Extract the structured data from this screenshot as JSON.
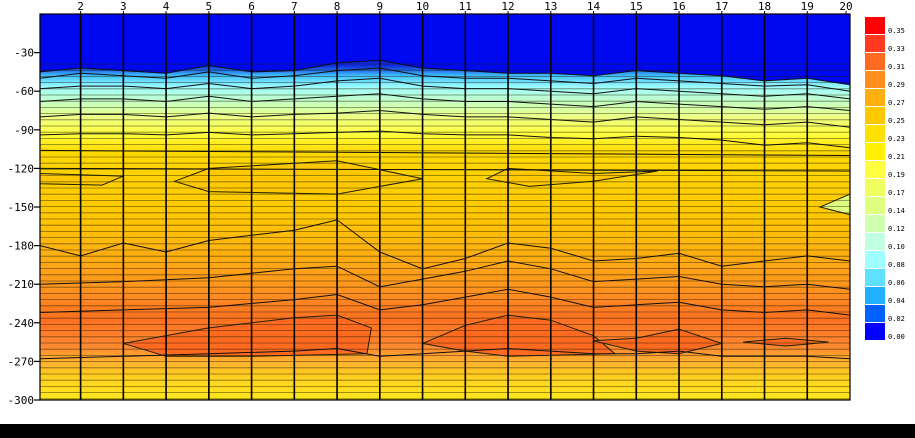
{
  "chart_data": {
    "type": "heatmap",
    "title": "",
    "xlabel": "",
    "ylabel": "",
    "x_ticks": [
      "2",
      "3",
      "4",
      "5",
      "6",
      "7",
      "8",
      "9",
      "10",
      "11",
      "12",
      "13",
      "14",
      "15",
      "16",
      "17",
      "18",
      "19",
      "20"
    ],
    "x_range": [
      1.05,
      20
    ],
    "y_ticks": [
      "-30",
      "-60",
      "-90",
      "-120",
      "-150",
      "-180",
      "-210",
      "-240",
      "-270",
      "-300"
    ],
    "y_range": [
      0,
      -300
    ],
    "colorbar": {
      "ticks": [
        "0.35",
        "0.33",
        "0.31",
        "0.29",
        "0.27",
        "0.25",
        "0.23",
        "0.21",
        "0.19",
        "0.17",
        "0.14",
        "0.12",
        "0.10",
        "0.08",
        "0.06",
        "0.04",
        "0.02",
        "0.00"
      ],
      "colors": [
        "#ff0000",
        "#ff3a20",
        "#ff6a20",
        "#ff9020",
        "#ffb010",
        "#ffc800",
        "#ffe000",
        "#fff000",
        "#ffff40",
        "#f0ff60",
        "#e0ff80",
        "#d0ffb0",
        "#c0ffe0",
        "#a0ffff",
        "#60e0ff",
        "#20b0ff",
        "#0060ff",
        "#0000ff"
      ]
    },
    "contour_levels": [
      {
        "name": "surface",
        "color": "#1030d8",
        "points": [
          [
            1.05,
            -45
          ],
          [
            2,
            -42
          ],
          [
            3,
            -44
          ],
          [
            4,
            -46
          ],
          [
            5,
            -40
          ],
          [
            6,
            -45
          ],
          [
            7,
            -44
          ],
          [
            8,
            -38
          ],
          [
            9,
            -36
          ],
          [
            10,
            -42
          ],
          [
            11,
            -44
          ],
          [
            12,
            -46
          ],
          [
            13,
            -46
          ],
          [
            14,
            -48
          ],
          [
            15,
            -44
          ],
          [
            16,
            -46
          ],
          [
            17,
            -48
          ],
          [
            18,
            -52
          ],
          [
            19,
            -50
          ],
          [
            20,
            -55
          ]
        ]
      },
      {
        "name": "l1",
        "color": "#20b0f0",
        "points": [
          [
            1.05,
            -50
          ],
          [
            2,
            -46
          ],
          [
            3,
            -48
          ],
          [
            4,
            -50
          ],
          [
            5,
            -45
          ],
          [
            6,
            -50
          ],
          [
            7,
            -48
          ],
          [
            8,
            -44
          ],
          [
            9,
            -42
          ],
          [
            10,
            -48
          ],
          [
            11,
            -50
          ],
          [
            12,
            -50
          ],
          [
            13,
            -52
          ],
          [
            14,
            -54
          ],
          [
            15,
            -50
          ],
          [
            16,
            -52
          ],
          [
            17,
            -54
          ],
          [
            18,
            -56
          ],
          [
            19,
            -55
          ],
          [
            20,
            -60
          ]
        ]
      },
      {
        "name": "l2",
        "color": "#60e0f0",
        "points": [
          [
            1.05,
            -58
          ],
          [
            2,
            -56
          ],
          [
            3,
            -56
          ],
          [
            4,
            -58
          ],
          [
            5,
            -54
          ],
          [
            6,
            -58
          ],
          [
            7,
            -56
          ],
          [
            8,
            -52
          ],
          [
            9,
            -50
          ],
          [
            10,
            -56
          ],
          [
            11,
            -58
          ],
          [
            12,
            -58
          ],
          [
            13,
            -60
          ],
          [
            14,
            -62
          ],
          [
            15,
            -58
          ],
          [
            16,
            -60
          ],
          [
            17,
            -62
          ],
          [
            18,
            -64
          ],
          [
            19,
            -62
          ],
          [
            20,
            -66
          ]
        ]
      },
      {
        "name": "l3",
        "color": "#a0f0e0",
        "points": [
          [
            1.05,
            -68
          ],
          [
            2,
            -66
          ],
          [
            3,
            -66
          ],
          [
            4,
            -68
          ],
          [
            5,
            -64
          ],
          [
            6,
            -68
          ],
          [
            7,
            -66
          ],
          [
            8,
            -64
          ],
          [
            9,
            -62
          ],
          [
            10,
            -66
          ],
          [
            11,
            -68
          ],
          [
            12,
            -68
          ],
          [
            13,
            -70
          ],
          [
            14,
            -72
          ],
          [
            15,
            -68
          ],
          [
            16,
            -70
          ],
          [
            17,
            -72
          ],
          [
            18,
            -74
          ],
          [
            19,
            -72
          ],
          [
            20,
            -75
          ]
        ]
      },
      {
        "name": "l4",
        "color": "#d0ffb0",
        "points": [
          [
            1.05,
            -80
          ],
          [
            2,
            -78
          ],
          [
            3,
            -78
          ],
          [
            4,
            -80
          ],
          [
            5,
            -77
          ],
          [
            6,
            -80
          ],
          [
            7,
            -78
          ],
          [
            8,
            -77
          ],
          [
            9,
            -75
          ],
          [
            10,
            -78
          ],
          [
            11,
            -80
          ],
          [
            12,
            -80
          ],
          [
            13,
            -82
          ],
          [
            14,
            -84
          ],
          [
            15,
            -80
          ],
          [
            16,
            -82
          ],
          [
            17,
            -84
          ],
          [
            18,
            -86
          ],
          [
            19,
            -84
          ],
          [
            20,
            -88
          ]
        ]
      },
      {
        "name": "l5",
        "color": "#f0ff60",
        "points": [
          [
            1.05,
            -94
          ],
          [
            2,
            -93
          ],
          [
            3,
            -93
          ],
          [
            4,
            -94
          ],
          [
            5,
            -92
          ],
          [
            6,
            -94
          ],
          [
            7,
            -93
          ],
          [
            8,
            -92
          ],
          [
            9,
            -91
          ],
          [
            10,
            -93
          ],
          [
            11,
            -94
          ],
          [
            12,
            -94
          ],
          [
            13,
            -96
          ],
          [
            14,
            -97
          ],
          [
            15,
            -95
          ],
          [
            16,
            -96
          ],
          [
            17,
            -98
          ],
          [
            18,
            -102
          ],
          [
            19,
            -100
          ],
          [
            20,
            -104
          ]
        ]
      },
      {
        "name": "l6",
        "color": "#ffe000",
        "points": [
          [
            1.05,
            -106
          ],
          [
            20,
            -110
          ]
        ]
      },
      {
        "name": "l7",
        "color": "#ffc800",
        "points": [
          [
            1.05,
            -120
          ],
          [
            20,
            -122
          ]
        ]
      },
      {
        "name": "l8",
        "color": "#ffb010",
        "points": [
          [
            1.05,
            -180
          ],
          [
            2,
            -188
          ],
          [
            3,
            -178
          ],
          [
            4,
            -185
          ],
          [
            5,
            -176
          ],
          [
            6,
            -172
          ],
          [
            7,
            -168
          ],
          [
            8,
            -160
          ],
          [
            9,
            -185
          ],
          [
            10,
            -198
          ],
          [
            11,
            -190
          ],
          [
            12,
            -178
          ],
          [
            13,
            -182
          ],
          [
            14,
            -192
          ],
          [
            15,
            -190
          ],
          [
            16,
            -186
          ],
          [
            17,
            -196
          ],
          [
            18,
            -192
          ],
          [
            19,
            -188
          ],
          [
            20,
            -192
          ]
        ]
      },
      {
        "name": "l9",
        "color": "#ff9020",
        "points": [
          [
            1.05,
            -210
          ],
          [
            3,
            -208
          ],
          [
            5,
            -205
          ],
          [
            7,
            -198
          ],
          [
            8,
            -196
          ],
          [
            9,
            -212
          ],
          [
            10,
            -206
          ],
          [
            11,
            -200
          ],
          [
            12,
            -192
          ],
          [
            13,
            -198
          ],
          [
            14,
            -208
          ],
          [
            15,
            -206
          ],
          [
            16,
            -204
          ],
          [
            17,
            -210
          ],
          [
            18,
            -212
          ],
          [
            19,
            -210
          ],
          [
            20,
            -214
          ]
        ]
      },
      {
        "name": "l10",
        "color": "#ff7020",
        "points": [
          [
            1.05,
            -232
          ],
          [
            3,
            -230
          ],
          [
            5,
            -228
          ],
          [
            7,
            -222
          ],
          [
            8,
            -218
          ],
          [
            9,
            -230
          ],
          [
            10,
            -226
          ],
          [
            11,
            -220
          ],
          [
            12,
            -214
          ],
          [
            13,
            -220
          ],
          [
            14,
            -228
          ],
          [
            15,
            -226
          ],
          [
            16,
            -224
          ],
          [
            17,
            -230
          ],
          [
            18,
            -232
          ],
          [
            19,
            -230
          ],
          [
            20,
            -234
          ]
        ]
      },
      {
        "name": "l11",
        "color": "#ff5a20",
        "points": [
          [
            1.05,
            -268
          ],
          [
            3,
            -266
          ],
          [
            5,
            -264
          ],
          [
            7,
            -262
          ],
          [
            8,
            -260
          ],
          [
            9,
            -266
          ],
          [
            10,
            -264
          ],
          [
            11,
            -262
          ],
          [
            12,
            -260
          ],
          [
            13,
            -262
          ],
          [
            14,
            -264
          ],
          [
            15,
            -264
          ],
          [
            16,
            -262
          ],
          [
            17,
            -266
          ],
          [
            18,
            -266
          ],
          [
            19,
            -266
          ],
          [
            20,
            -268
          ]
        ]
      }
    ],
    "closed_contours": [
      {
        "name": "orange-pool-left",
        "color": "#ff6a20",
        "points": [
          [
            3,
            -256
          ],
          [
            5,
            -244
          ],
          [
            7,
            -236
          ],
          [
            8,
            -234
          ],
          [
            8.8,
            -244
          ],
          [
            8.7,
            -264
          ],
          [
            6,
            -266
          ],
          [
            4,
            -266
          ]
        ]
      },
      {
        "name": "orange-pool-center",
        "color": "#ff6a20",
        "points": [
          [
            10,
            -256
          ],
          [
            11,
            -242
          ],
          [
            12,
            -234
          ],
          [
            13,
            -238
          ],
          [
            14,
            -250
          ],
          [
            14.5,
            -264
          ],
          [
            12,
            -266
          ],
          [
            11,
            -262
          ]
        ]
      },
      {
        "name": "orange-pool-right",
        "color": "#ff6a20",
        "points": [
          [
            14,
            -254
          ],
          [
            15,
            -252
          ],
          [
            16,
            -245
          ],
          [
            17,
            -256
          ],
          [
            16,
            -264
          ],
          [
            15,
            -262
          ]
        ]
      },
      {
        "name": "orange-lens-far-right",
        "color": "#ff6a20",
        "points": [
          [
            17.5,
            -255
          ],
          [
            18.5,
            -252
          ],
          [
            19.5,
            -255
          ],
          [
            18.5,
            -258
          ]
        ]
      },
      {
        "name": "yellow-lens-1",
        "color": "#ffc800",
        "points": [
          [
            1.05,
            -124
          ],
          [
            3,
            -126
          ],
          [
            2.5,
            -133
          ],
          [
            1.05,
            -132
          ]
        ]
      },
      {
        "name": "yellow-lens-2",
        "color": "#ffc800",
        "points": [
          [
            4.2,
            -130
          ],
          [
            5,
            -120
          ],
          [
            8,
            -114
          ],
          [
            10,
            -128
          ],
          [
            8,
            -140
          ],
          [
            5,
            -138
          ]
        ]
      },
      {
        "name": "yellow-lens-3",
        "color": "#ffc800",
        "points": [
          [
            11.5,
            -128
          ],
          [
            12,
            -120
          ],
          [
            14,
            -124
          ],
          [
            15.5,
            -122
          ],
          [
            14,
            -130
          ],
          [
            12.5,
            -134
          ]
        ]
      },
      {
        "name": "green-lens-right",
        "color": "#e0ff80",
        "points": [
          [
            20,
            -140
          ],
          [
            19.3,
            -150
          ],
          [
            20,
            -156
          ]
        ]
      }
    ]
  }
}
